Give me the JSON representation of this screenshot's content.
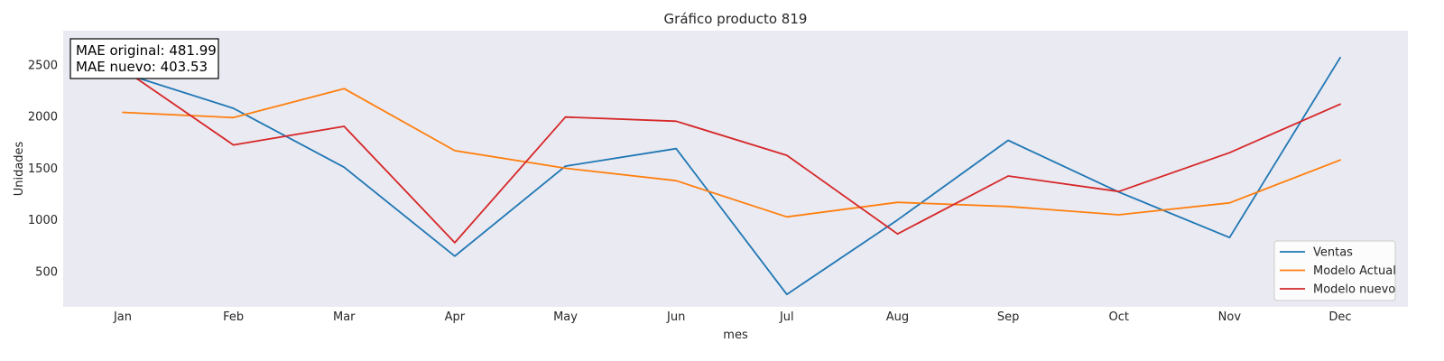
{
  "chart_data": {
    "type": "line",
    "title": "Gráfico producto 819",
    "xlabel": "mes",
    "ylabel": "Unidades",
    "categories": [
      "Jan",
      "Feb",
      "Mar",
      "Apr",
      "May",
      "Jun",
      "Jul",
      "Aug",
      "Sep",
      "Oct",
      "Nov",
      "Dec"
    ],
    "ylim": [
      160,
      2830
    ],
    "yticks": [
      500,
      1000,
      1500,
      2000,
      2500
    ],
    "grid": false,
    "legend_position": "lower-right",
    "series": [
      {
        "name": "Ventas",
        "color": "#1f77b4",
        "values": [
          2420,
          2080,
          1510,
          650,
          1520,
          1690,
          280,
          1000,
          1770,
          1270,
          830,
          2570
        ]
      },
      {
        "name": "Modelo Actual",
        "color": "#ff7f0e",
        "values": [
          2040,
          1990,
          2270,
          1670,
          1500,
          1380,
          1030,
          1170,
          1130,
          1050,
          1165,
          1580
        ]
      },
      {
        "name": "Modelo nuevo",
        "color": "#d62728",
        "values": [
          2460,
          1725,
          1905,
          780,
          1995,
          1955,
          1625,
          865,
          1425,
          1275,
          1650,
          2120
        ]
      }
    ],
    "annotations": [
      "MAE original: 481.99",
      "MAE nuevo: 403.53"
    ]
  }
}
